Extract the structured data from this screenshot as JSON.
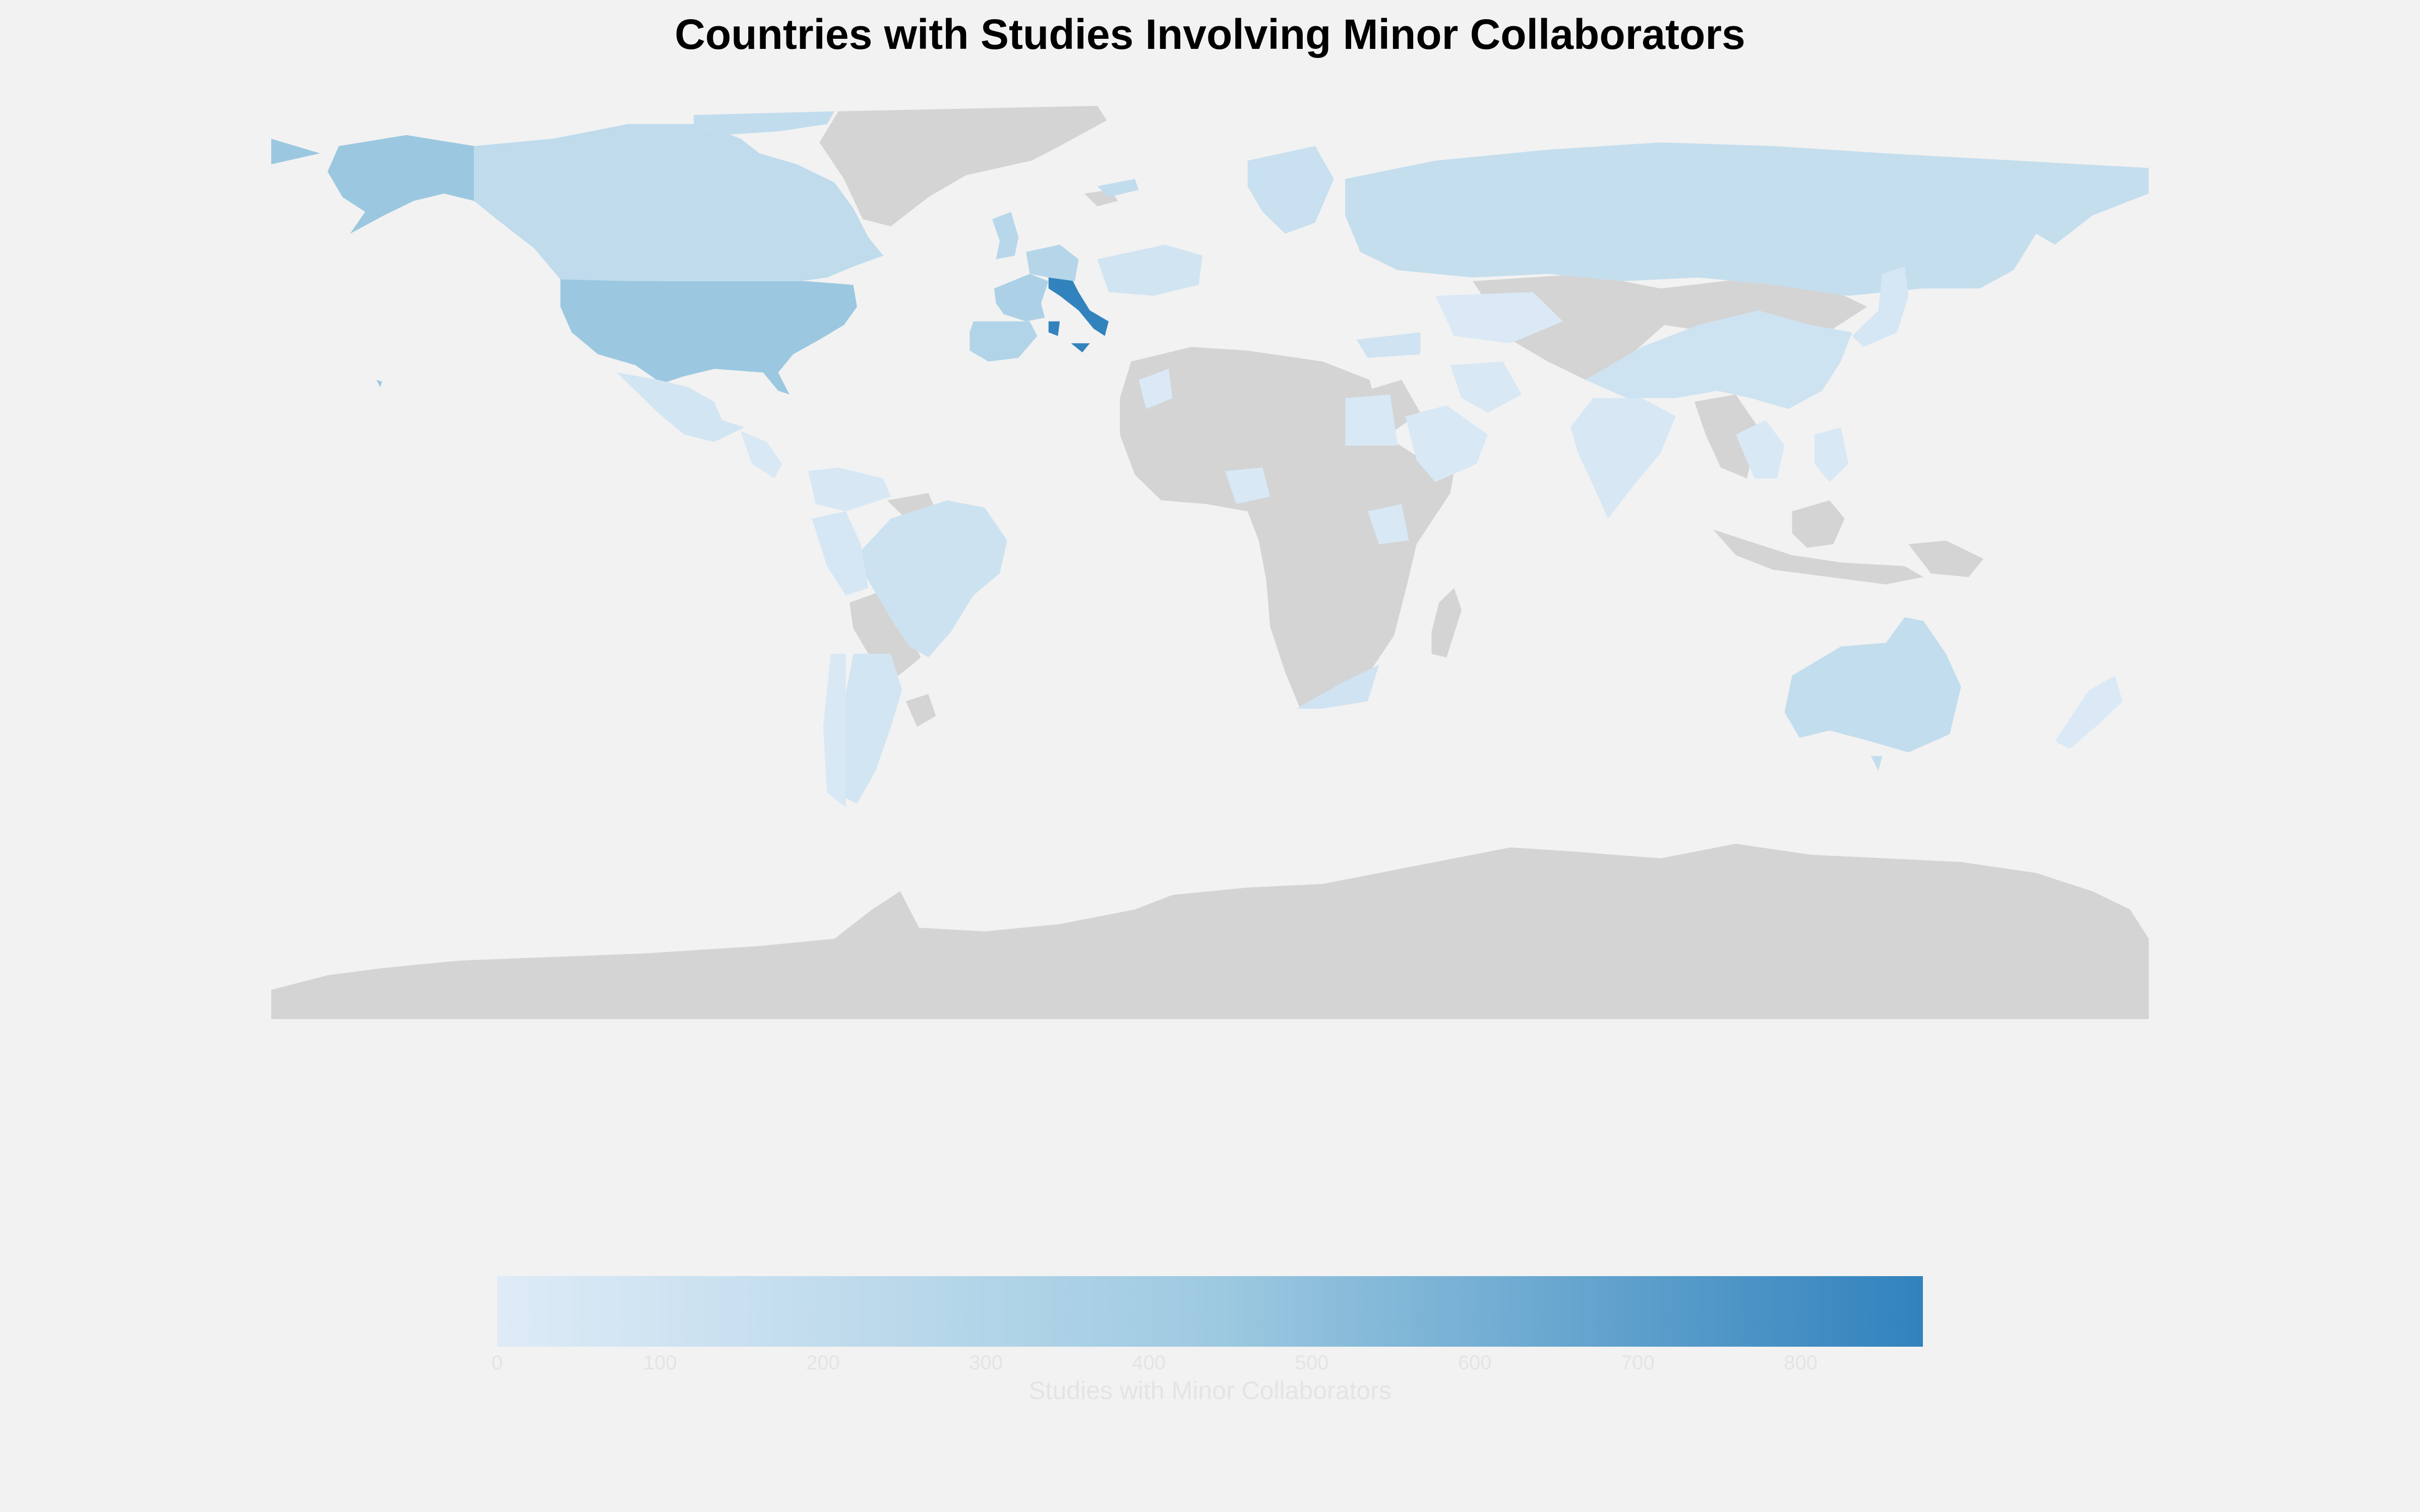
{
  "title": "Countries with Studies Involving Minor Collaborators",
  "colors": {
    "background": "#f2f2f2",
    "no_data": "#d4d4d4",
    "scale_low": "#deebf7",
    "scale_mid": "#9ecae1",
    "scale_high": "#3182bd",
    "tick_text": "#e4e4e4"
  },
  "colorbar": {
    "label": "Studies with Minor Collaborators",
    "min": 0,
    "max": 875,
    "ticks": [
      "0",
      "100",
      "200",
      "300",
      "400",
      "500",
      "600",
      "700",
      "800"
    ]
  },
  "chart_data": {
    "type": "choropleth",
    "projection": "equirectangular",
    "value_label": "Studies with Minor Collaborators",
    "range": [
      0,
      875
    ],
    "regions_with_data": [
      {
        "name": "Italy",
        "value": 870
      },
      {
        "name": "United States",
        "value": 450
      },
      {
        "name": "Alaska",
        "value": 450
      },
      {
        "name": "France",
        "value": 340
      },
      {
        "name": "Spain",
        "value": 300
      },
      {
        "name": "Germany",
        "value": 280
      },
      {
        "name": "United Kingdom",
        "value": 260
      },
      {
        "name": "Canada",
        "value": 210
      },
      {
        "name": "Greenland strip",
        "value": 200
      },
      {
        "name": "Australia",
        "value": 190
      },
      {
        "name": "Russia",
        "value": 170
      },
      {
        "name": "Scandinavia",
        "value": 150
      },
      {
        "name": "Brazil",
        "value": 120
      },
      {
        "name": "China",
        "value": 110
      },
      {
        "name": "South Africa",
        "value": 100
      },
      {
        "name": "Turkey",
        "value": 100
      },
      {
        "name": "Eastern Europe",
        "value": 90
      },
      {
        "name": "Mexico",
        "value": 80
      },
      {
        "name": "Argentina",
        "value": 80
      },
      {
        "name": "Peru / Andes",
        "value": 60
      },
      {
        "name": "Japan",
        "value": 60
      },
      {
        "name": "India",
        "value": 50
      },
      {
        "name": "Colombia / Venezuela",
        "value": 50
      },
      {
        "name": "Central America",
        "value": 40
      },
      {
        "name": "Saudi Arabia",
        "value": 40
      },
      {
        "name": "Iran",
        "value": 40
      },
      {
        "name": "Egypt",
        "value": 40
      },
      {
        "name": "Chile",
        "value": 40
      },
      {
        "name": "Southeast Asia",
        "value": 40
      },
      {
        "name": "Philippines",
        "value": 40
      },
      {
        "name": "Nigeria",
        "value": 40
      },
      {
        "name": "Kenya",
        "value": 40
      },
      {
        "name": "Morocco",
        "value": 30
      },
      {
        "name": "New Zealand",
        "value": 30
      },
      {
        "name": "Kazakhstan",
        "value": 30
      }
    ]
  }
}
